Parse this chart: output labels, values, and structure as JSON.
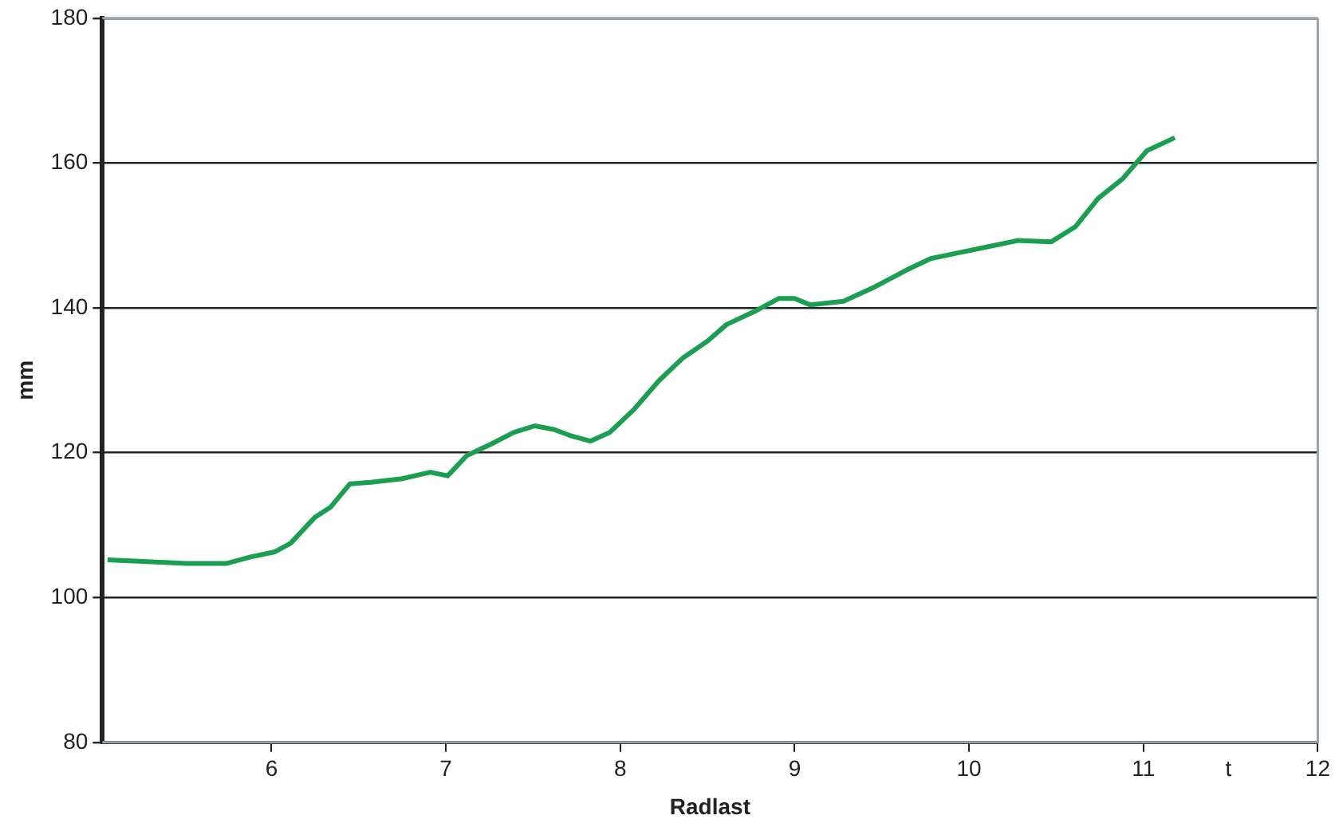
{
  "chart_data": {
    "type": "line",
    "xlabel": "Radlast",
    "ylabel": "mm",
    "annotations": [
      "t"
    ],
    "x": [
      5.06,
      5.24,
      5.51,
      5.74,
      5.88,
      6.02,
      6.11,
      6.25,
      6.34,
      6.45,
      6.57,
      6.75,
      6.91,
      7.01,
      7.12,
      7.26,
      7.39,
      7.51,
      7.62,
      7.72,
      7.83,
      7.94,
      8.08,
      8.22,
      8.36,
      8.5,
      8.61,
      8.77,
      8.91,
      9.0,
      9.09,
      9.28,
      9.46,
      9.64,
      9.78,
      9.92,
      10.1,
      10.28,
      10.47,
      10.61,
      10.74,
      10.88,
      11.02,
      11.18
    ],
    "series": [
      {
        "color": "#1a9e50",
        "values": [
          105.2,
          105,
          104.7,
          104.7,
          105.6,
          106.3,
          107.5,
          111.1,
          112.5,
          115.7,
          115.9,
          116.4,
          117.3,
          116.8,
          119.6,
          121.2,
          122.8,
          123.7,
          123.2,
          122.3,
          121.6,
          122.8,
          126,
          129.9,
          133.1,
          135.4,
          137.7,
          139.5,
          141.3,
          141.3,
          140.4,
          140.9,
          142.9,
          145.2,
          146.8,
          147.5,
          148.4,
          149.3,
          149.1,
          151.2,
          155.1,
          157.8,
          161.7,
          163.5
        ]
      }
    ],
    "xlim": [
      5.03,
      12
    ],
    "xticks": [
      6,
      7,
      8,
      9,
      10,
      11,
      12
    ],
    "ylim": [
      80,
      180
    ],
    "yticks": [
      80,
      100,
      120,
      140,
      160,
      180
    ],
    "grid": "y",
    "legend": false,
    "marker": "none",
    "line_style": "solid"
  }
}
